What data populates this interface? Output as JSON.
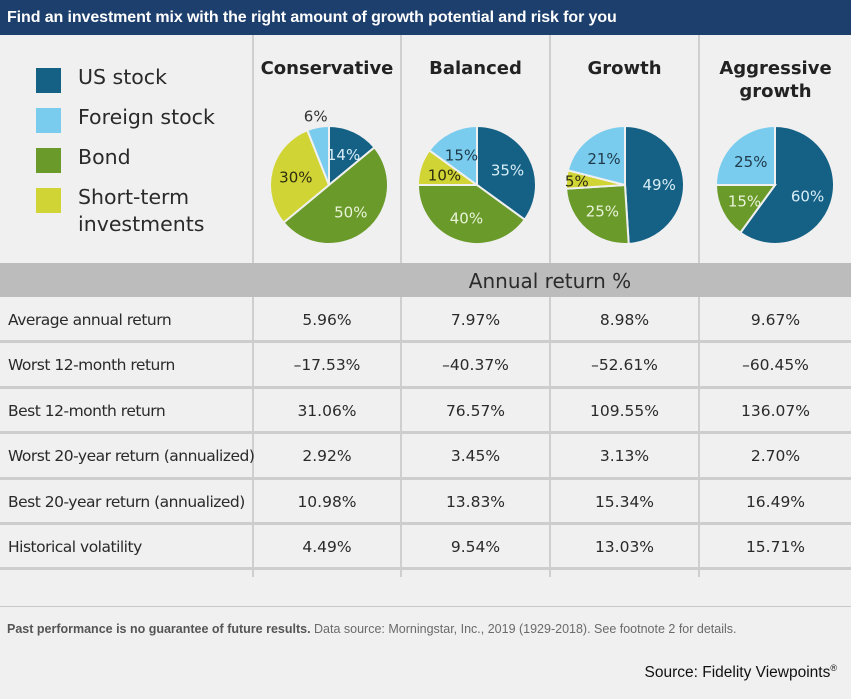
{
  "title": "Find an investment mix with the right amount of growth potential and risk for you",
  "colors": {
    "title_bg": "#1d3f6d",
    "us_stock": "#146185",
    "foreign_stock": "#79ccee",
    "bond": "#6a9a2a",
    "short_term": "#d1d435",
    "band": "#bcbcbc"
  },
  "legend": [
    {
      "label": "US stock",
      "key": "us_stock"
    },
    {
      "label": "Foreign stock",
      "key": "foreign_stock"
    },
    {
      "label": "Bond",
      "key": "bond"
    },
    {
      "label": "Short-term",
      "label2": "investments",
      "key": "short_term"
    }
  ],
  "columns": [
    {
      "title": "Conservative",
      "title2": ""
    },
    {
      "title": "Balanced",
      "title2": ""
    },
    {
      "title": "Growth",
      "title2": ""
    },
    {
      "title": "Aggressive",
      "title2": "growth"
    }
  ],
  "band_label": "Annual return %",
  "rows": [
    {
      "label": "Average annual return",
      "values": [
        "5.96%",
        "7.97%",
        "8.98%",
        "9.67%"
      ]
    },
    {
      "label": "Worst 12-month return",
      "values": [
        "–17.53%",
        "–40.37%",
        "–52.61%",
        "–60.45%"
      ]
    },
    {
      "label": "Best 12-month return",
      "values": [
        "31.06%",
        "76.57%",
        "109.55%",
        "136.07%"
      ]
    },
    {
      "label": "Worst 20-year return (annualized)",
      "values": [
        "2.92%",
        "3.45%",
        "3.13%",
        "2.70%"
      ]
    },
    {
      "label": "Best 20-year return (annualized)",
      "values": [
        "10.98%",
        "13.83%",
        "15.34%",
        "16.49%"
      ]
    },
    {
      "label": "Historical volatility",
      "values": [
        "4.49%",
        "9.54%",
        "13.03%",
        "15.71%"
      ]
    }
  ],
  "footnote_bold": "Past performance is no guarantee of future results.",
  "footnote_rest": " Data source: Morningstar, Inc., 2019 (1929-2018). See footnote 2 for details.",
  "source": "Source:  Fidelity Viewpoints",
  "source_mark": "®",
  "chart_data": {
    "type": "pie",
    "title": "Find an investment mix with the right amount of growth potential and risk for you",
    "legend": [
      "US stock",
      "Foreign stock",
      "Bond",
      "Short-term investments"
    ],
    "legend_position": "left",
    "pies": [
      {
        "name": "Conservative",
        "slices": [
          {
            "category": "US stock",
            "value": 14,
            "label": "14%"
          },
          {
            "category": "Bond",
            "value": 50,
            "label": "50%"
          },
          {
            "category": "Short-term investments",
            "value": 30,
            "label": "30%"
          },
          {
            "category": "Foreign stock",
            "value": 6,
            "label": "6%"
          }
        ]
      },
      {
        "name": "Balanced",
        "slices": [
          {
            "category": "US stock",
            "value": 35,
            "label": "35%"
          },
          {
            "category": "Bond",
            "value": 40,
            "label": "40%"
          },
          {
            "category": "Short-term investments",
            "value": 10,
            "label": "10%"
          },
          {
            "category": "Foreign stock",
            "value": 15,
            "label": "15%"
          }
        ]
      },
      {
        "name": "Growth",
        "slices": [
          {
            "category": "US stock",
            "value": 49,
            "label": "49%"
          },
          {
            "category": "Bond",
            "value": 25,
            "label": "25%"
          },
          {
            "category": "Short-term investments",
            "value": 5,
            "label": "5%"
          },
          {
            "category": "Foreign stock",
            "value": 21,
            "label": "21%"
          }
        ]
      },
      {
        "name": "Aggressive growth",
        "slices": [
          {
            "category": "US stock",
            "value": 60,
            "label": "60%"
          },
          {
            "category": "Bond",
            "value": 15,
            "label": "15%"
          },
          {
            "category": "Short-term investments",
            "value": 0,
            "label": ""
          },
          {
            "category": "Foreign stock",
            "value": 25,
            "label": "25%"
          }
        ]
      }
    ],
    "table": {
      "header": "Annual return %",
      "columns": [
        "Conservative",
        "Balanced",
        "Growth",
        "Aggressive growth"
      ],
      "rows": [
        {
          "label": "Average annual return",
          "values": [
            5.96,
            7.97,
            8.98,
            9.67
          ]
        },
        {
          "label": "Worst 12-month return",
          "values": [
            -17.53,
            -40.37,
            -52.61,
            -60.45
          ]
        },
        {
          "label": "Best 12-month return",
          "values": [
            31.06,
            76.57,
            109.55,
            136.07
          ]
        },
        {
          "label": "Worst 20-year return (annualized)",
          "values": [
            2.92,
            3.45,
            3.13,
            2.7
          ]
        },
        {
          "label": "Best 20-year return (annualized)",
          "values": [
            10.98,
            13.83,
            15.34,
            16.49
          ]
        },
        {
          "label": "Historical volatility",
          "values": [
            4.49,
            9.54,
            13.03,
            15.71
          ]
        }
      ]
    }
  }
}
